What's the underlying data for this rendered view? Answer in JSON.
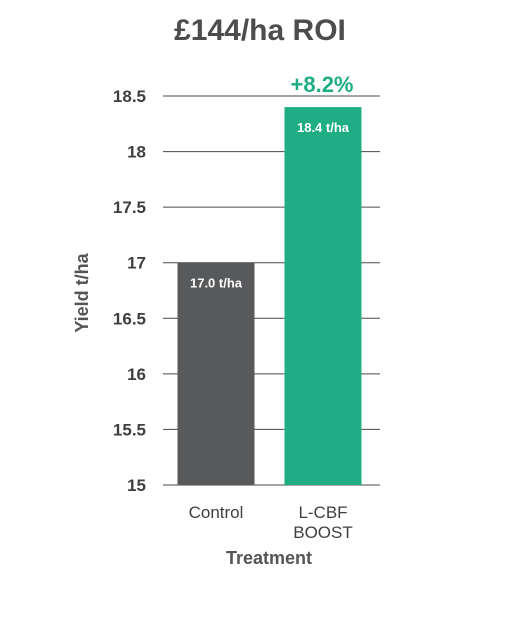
{
  "chart_data": {
    "type": "bar",
    "title": "£144/ha ROI",
    "xlabel": "Treatment",
    "ylabel": "Yield t/ha",
    "ylim": [
      15,
      18.5
    ],
    "yticks": [
      "15",
      "15.5",
      "16",
      "16.5",
      "17",
      "17.5",
      "18",
      "18.5"
    ],
    "categories": [
      [
        "Control"
      ],
      [
        "L-CBF",
        "BOOST"
      ]
    ],
    "values": [
      17.0,
      18.4
    ],
    "data_labels": [
      "17.0 t/ha",
      "18.4 t/ha"
    ],
    "bar_colors": [
      "#58595b",
      "#1fad84"
    ],
    "annotation": {
      "text": "+8.2%",
      "color": "#1fad84"
    },
    "grid": true,
    "gridline_color": "#4a4a4a"
  }
}
